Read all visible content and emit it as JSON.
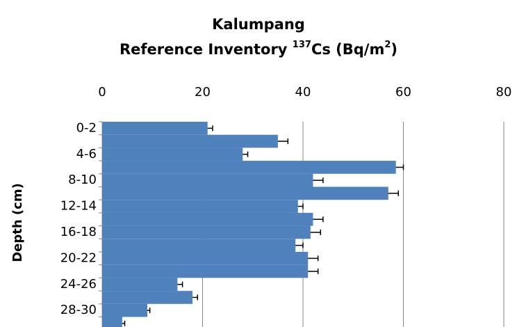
{
  "chart_data": {
    "type": "bar",
    "orientation": "horizontal",
    "title_lines": [
      [
        "Kalumpang"
      ],
      [
        "Reference Inventory ",
        "137",
        "Cs (Bq/m",
        "2",
        ")"
      ]
    ],
    "y_label": "Depth (cm)",
    "categories": [
      "0-2",
      null,
      "4-6",
      null,
      "8-10",
      null,
      "12-14",
      null,
      "16-18",
      null,
      "20-22",
      null,
      "24-26",
      null,
      "28-30",
      null
    ],
    "values": [
      21,
      35,
      28,
      58.5,
      42,
      57,
      39,
      42,
      41.5,
      38.5,
      41,
      41,
      15,
      18,
      9,
      4
    ],
    "errors": [
      1,
      2,
      1,
      1.5,
      2,
      2,
      1,
      2,
      2,
      1.5,
      2,
      2,
      1,
      1,
      0.5,
      0.5
    ],
    "color": "#4f81bd",
    "xlim": [
      0,
      80
    ],
    "xticks": [
      0,
      20,
      40,
      60,
      80
    ],
    "grid": true
  }
}
